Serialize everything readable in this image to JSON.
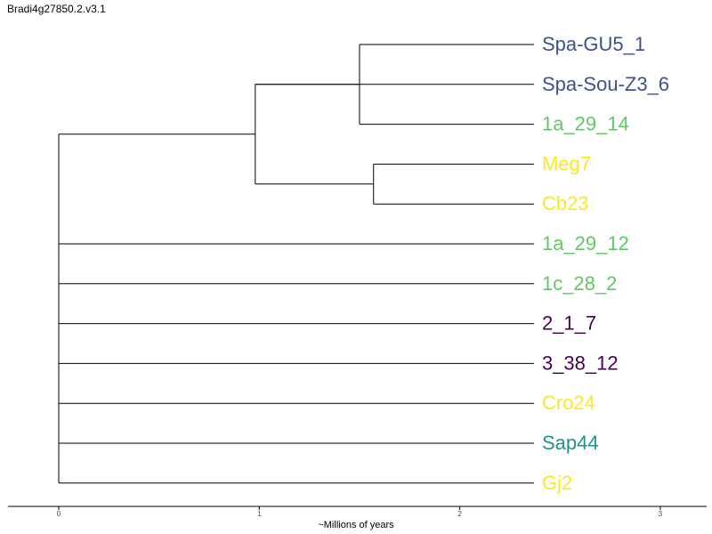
{
  "chart_data": {
    "type": "dendrogram",
    "title": "Bradi4g27850.2.v3.1",
    "xlabel": "~Millions of years",
    "x_ticks": [
      0,
      1,
      2,
      3
    ],
    "tips_right_x": 2.37,
    "leaves": [
      {
        "name": "Spa-GU5_1",
        "color": "#3b528b"
      },
      {
        "name": "Spa-Sou-Z3_6",
        "color": "#3b528b"
      },
      {
        "name": "1a_29_14",
        "color": "#5ec962"
      },
      {
        "name": "Meg7",
        "color": "#fde725"
      },
      {
        "name": "Cb23",
        "color": "#fde725"
      },
      {
        "name": "1a_29_12",
        "color": "#5ec962"
      },
      {
        "name": "1c_28_2",
        "color": "#5ec962"
      },
      {
        "name": "2_1_7",
        "color": "#440154"
      },
      {
        "name": "3_38_12",
        "color": "#440154"
      },
      {
        "name": "Cro24",
        "color": "#fde725"
      },
      {
        "name": "Sap44",
        "color": "#21918c"
      },
      {
        "name": "Gj2",
        "color": "#fde725"
      }
    ],
    "clades": [
      {
        "id": "A",
        "x": 1.5,
        "children": [
          0,
          2
        ]
      },
      {
        "id": "B",
        "x": 0.98,
        "children": [
          "A",
          1
        ]
      },
      {
        "id": "C",
        "x": 1.57,
        "children": [
          3,
          4
        ]
      },
      {
        "id": "D",
        "x": 0.98,
        "children": [
          "B",
          "C"
        ]
      },
      {
        "id": "ROOT",
        "x": 0.0,
        "children": [
          "D",
          5,
          6,
          7,
          8,
          9,
          10,
          11
        ]
      }
    ]
  }
}
